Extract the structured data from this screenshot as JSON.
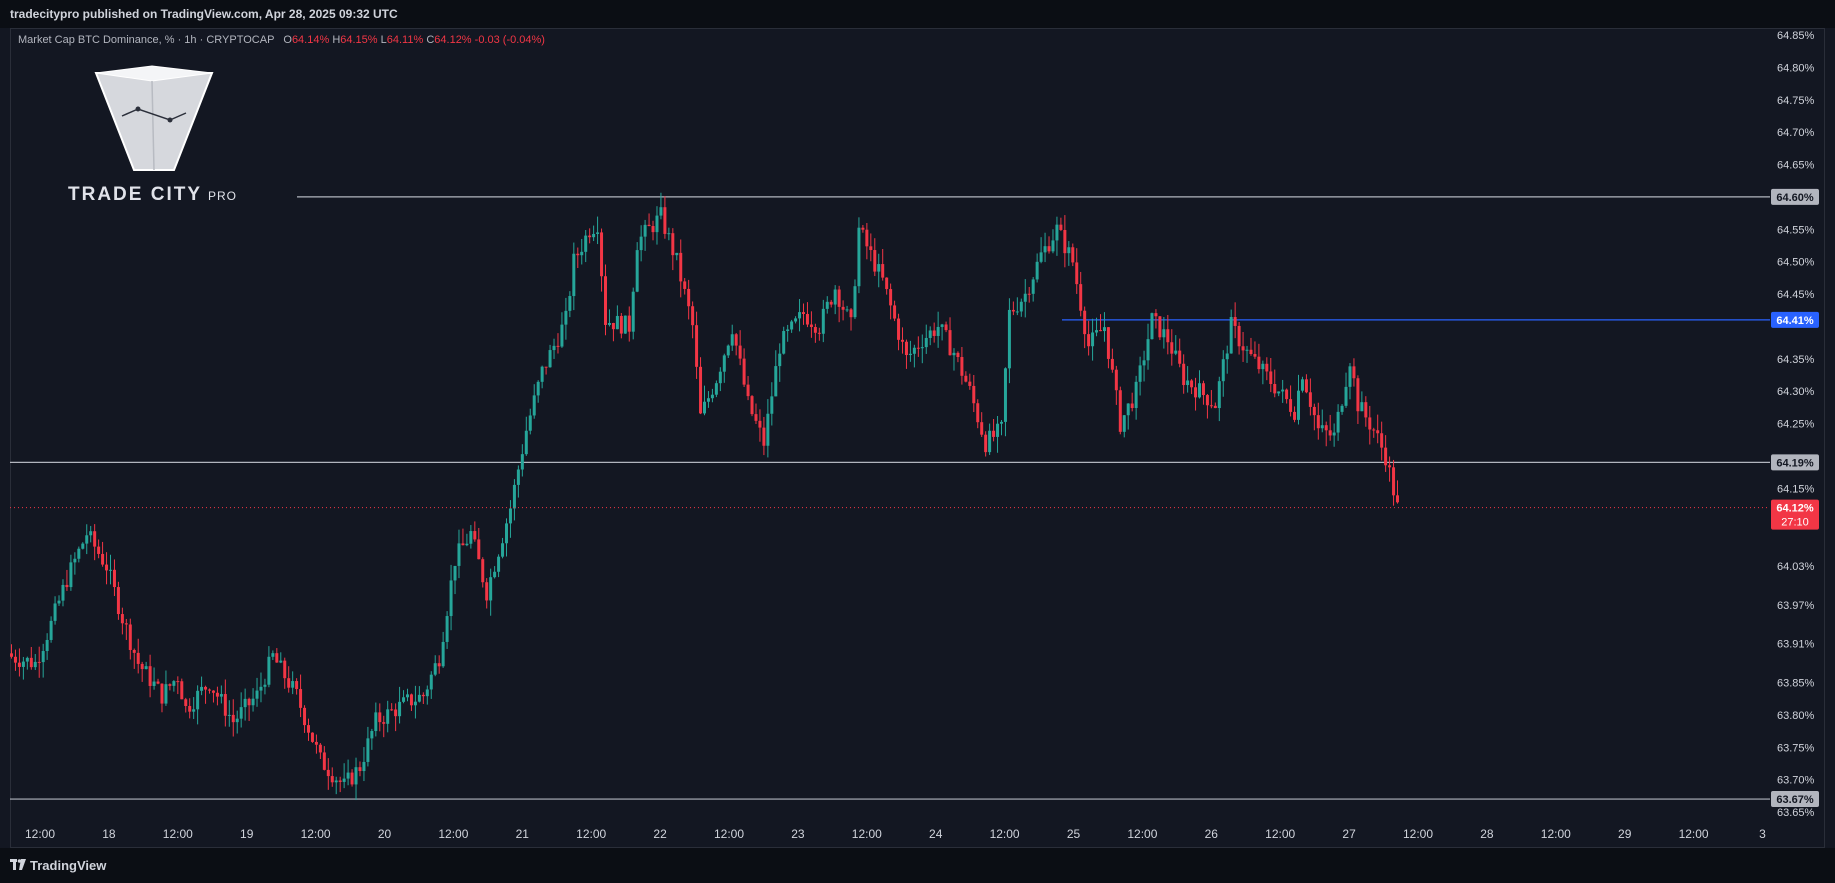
{
  "header": {
    "published": "tradecitypro published on TradingView.com, Apr 28, 2025 09:32 UTC"
  },
  "legend": {
    "symbol": "Market Cap BTC Dominance, %",
    "interval": "1h",
    "source": "CRYPTOCAP",
    "o_label": "O",
    "o": "64.14%",
    "h_label": "H",
    "h": "64.15%",
    "l_label": "L",
    "l": "64.11%",
    "c_label": "C",
    "c": "64.12%",
    "change": "-0.03 (-0.04%)"
  },
  "logo": {
    "brand": "TRADE CITY",
    "brand_suffix": "PRO"
  },
  "footer": {
    "tradingview": "TradingView"
  },
  "colors": {
    "background": "#131722",
    "up": "#26a69a",
    "down": "#f23645",
    "level": "#b2b5be",
    "blue_level": "#2962ff",
    "grid_text": "#d1d4dc"
  },
  "chart_data": {
    "type": "candlestick",
    "y_unit": "%",
    "ylim": [
      63.65,
      64.86
    ],
    "y_ticks": [
      "64.85%",
      "64.80%",
      "64.75%",
      "64.70%",
      "64.65%",
      "64.55%",
      "64.50%",
      "64.45%",
      "64.35%",
      "64.30%",
      "64.25%",
      "64.15%",
      "64.03%",
      "63.97%",
      "63.91%",
      "63.85%",
      "63.80%",
      "63.75%",
      "63.70%",
      "63.65%"
    ],
    "x_ticks": [
      "12:00",
      "18",
      "12:00",
      "19",
      "12:00",
      "20",
      "12:00",
      "21",
      "12:00",
      "22",
      "12:00",
      "23",
      "12:00",
      "24",
      "12:00",
      "25",
      "12:00",
      "26",
      "12:00",
      "27",
      "12:00",
      "28",
      "12:00",
      "29",
      "12:00",
      "3"
    ],
    "x_range": [
      "Apr 17 06:00",
      "Apr 30 00:00"
    ],
    "horizontal_levels": [
      {
        "value": 64.6,
        "label": "64.60%",
        "color": "#b2b5be"
      },
      {
        "value": 64.41,
        "label": "64.41%",
        "color": "#2962ff"
      },
      {
        "value": 64.19,
        "label": "64.19%",
        "color": "#b2b5be"
      },
      {
        "value": 63.67,
        "label": "63.67%",
        "color": "#b2b5be"
      }
    ],
    "last_price": {
      "value": 64.12,
      "label": "64.12%",
      "countdown": "27:10"
    },
    "close_path": [
      [
        0,
        63.89
      ],
      [
        6,
        63.88
      ],
      [
        10,
        63.94
      ],
      [
        14,
        64.01
      ],
      [
        19,
        64.08
      ],
      [
        24,
        64.03
      ],
      [
        28,
        63.95
      ],
      [
        32,
        63.88
      ],
      [
        38,
        63.83
      ],
      [
        42,
        63.86
      ],
      [
        44,
        63.81
      ],
      [
        50,
        63.85
      ],
      [
        56,
        63.79
      ],
      [
        62,
        63.83
      ],
      [
        66,
        63.89
      ],
      [
        72,
        63.83
      ],
      [
        78,
        63.73
      ],
      [
        84,
        63.69
      ],
      [
        88,
        63.72
      ],
      [
        92,
        63.79
      ],
      [
        100,
        63.82
      ],
      [
        104,
        63.83
      ],
      [
        108,
        63.89
      ],
      [
        112,
        64.04
      ],
      [
        116,
        64.08
      ],
      [
        120,
        63.99
      ],
      [
        126,
        64.12
      ],
      [
        130,
        64.24
      ],
      [
        134,
        64.33
      ],
      [
        140,
        64.41
      ],
      [
        142,
        64.5
      ],
      [
        146,
        64.55
      ],
      [
        148,
        64.56
      ],
      [
        150,
        64.41
      ],
      [
        156,
        64.4
      ],
      [
        158,
        64.53
      ],
      [
        164,
        64.57
      ],
      [
        168,
        64.5
      ],
      [
        172,
        64.4
      ],
      [
        174,
        64.26
      ],
      [
        178,
        64.32
      ],
      [
        182,
        64.4
      ],
      [
        186,
        64.28
      ],
      [
        190,
        64.22
      ],
      [
        194,
        64.37
      ],
      [
        200,
        64.42
      ],
      [
        204,
        64.4
      ],
      [
        208,
        64.46
      ],
      [
        212,
        64.4
      ],
      [
        214,
        64.55
      ],
      [
        220,
        64.47
      ],
      [
        226,
        64.35
      ],
      [
        230,
        64.38
      ],
      [
        234,
        64.4
      ],
      [
        238,
        64.36
      ],
      [
        242,
        64.3
      ],
      [
        246,
        64.22
      ],
      [
        250,
        64.24
      ],
      [
        252,
        64.42
      ],
      [
        256,
        64.45
      ],
      [
        260,
        64.51
      ],
      [
        264,
        64.55
      ],
      [
        268,
        64.5
      ],
      [
        272,
        64.37
      ],
      [
        276,
        64.4
      ],
      [
        280,
        64.25
      ],
      [
        284,
        64.3
      ],
      [
        288,
        64.41
      ],
      [
        292,
        64.38
      ],
      [
        296,
        64.32
      ],
      [
        300,
        64.3
      ],
      [
        304,
        64.28
      ],
      [
        308,
        64.4
      ],
      [
        312,
        64.36
      ],
      [
        316,
        64.33
      ],
      [
        320,
        64.3
      ],
      [
        324,
        64.27
      ],
      [
        326,
        64.33
      ],
      [
        330,
        64.24
      ],
      [
        334,
        64.23
      ],
      [
        338,
        64.35
      ],
      [
        340,
        64.28
      ],
      [
        344,
        64.24
      ],
      [
        347,
        64.2
      ],
      [
        350,
        64.12
      ]
    ]
  }
}
